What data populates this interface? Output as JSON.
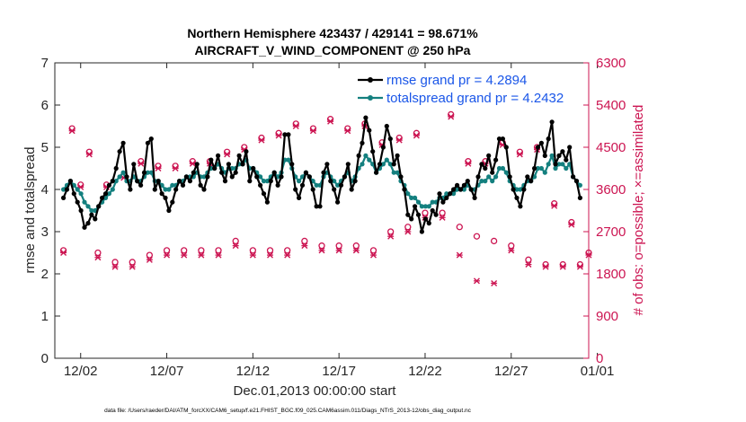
{
  "chart_data": {
    "type": "line",
    "title": "Northern Hemisphere 423437 / 429141 = 98.671%",
    "subtitle": "AIRCRAFT_V_WIND_COMPONENT @ 250 hPa",
    "xlabel": "Dec.01,2013 00:00:00 start",
    "ylabel_left": "rmse and totalspread",
    "ylabel_right": "# of obs: o=possible; ×=assimilated",
    "footer": "data file: /Users/raeder/DAI/ATM_forcXX/CAM6_setup/f.e21.FHIST_BGC.f09_025.CAM6assim.011/Diags_NTrS_2013-12/obs_diag_output.nc",
    "x_day_range": [
      0.5,
      31.5
    ],
    "ylim_left": [
      0,
      7
    ],
    "ylim_right": [
      0,
      6300
    ],
    "x_ticks": [
      {
        "day": 2,
        "label": "12/02"
      },
      {
        "day": 7,
        "label": "12/07"
      },
      {
        "day": 12,
        "label": "12/12"
      },
      {
        "day": 17,
        "label": "12/17"
      },
      {
        "day": 22,
        "label": "12/22"
      },
      {
        "day": 27,
        "label": "12/27"
      },
      {
        "day": 32,
        "label": "01/01"
      }
    ],
    "y_ticks_left": [
      "0",
      "1",
      "2",
      "3",
      "4",
      "5",
      "6",
      "7"
    ],
    "y_ticks_right": [
      "0",
      "900",
      "1800",
      "2700",
      "3600",
      "4500",
      "5400",
      "6300"
    ],
    "colors": {
      "rmse": "#000000",
      "spread": "#14807f",
      "obs": "#cc1552",
      "legend_text": "#1a56e8"
    },
    "legend": {
      "placement": "top-right",
      "entries": [
        "rmse grand pr = 4.2894",
        "totalspread grand pr = 4.2432"
      ]
    },
    "series": [
      {
        "name": "rmse",
        "color": "#000000",
        "values": [
          3.8,
          4.0,
          4.2,
          3.9,
          3.7,
          3.5,
          3.1,
          3.2,
          3.4,
          3.3,
          3.6,
          3.8,
          3.9,
          4.1,
          4.2,
          4.5,
          4.9,
          5.1,
          4.3,
          4.0,
          4.6,
          4.2,
          4.1,
          4.4,
          5.1,
          5.2,
          4.0,
          4.2,
          3.9,
          3.8,
          3.5,
          3.7,
          4.0,
          4.2,
          4.1,
          4.3,
          4.2,
          4.4,
          4.6,
          4.1,
          4.0,
          4.3,
          4.7,
          4.5,
          4.8,
          4.4,
          4.2,
          4.6,
          4.3,
          4.4,
          4.8,
          4.6,
          4.9,
          4.2,
          4.5,
          4.3,
          4.1,
          3.9,
          3.7,
          4.2,
          4.4,
          4.1,
          4.3,
          5.3,
          5.3,
          4.6,
          4.0,
          3.8,
          4.1,
          4.4,
          4.3,
          4.0,
          3.6,
          3.6,
          4.4,
          4.6,
          4.2,
          4.0,
          3.7,
          4.1,
          4.3,
          4.6,
          4.0,
          4.2,
          4.8,
          5.1,
          5.7,
          5.4,
          4.9,
          4.4,
          4.6,
          5.0,
          5.5,
          5.2,
          4.6,
          4.8,
          4.3,
          4.0,
          3.4,
          3.3,
          3.6,
          3.4,
          3.0,
          3.3,
          3.2,
          3.5,
          3.4,
          3.9,
          3.7,
          3.8,
          3.9,
          4.0,
          4.1,
          4.0,
          4.1,
          4.2,
          4.0,
          3.8,
          4.3,
          4.6,
          4.5,
          4.8,
          4.4,
          4.7,
          5.2,
          5.2,
          5.0,
          4.3,
          4.0,
          3.8,
          3.6,
          4.0,
          4.3,
          4.2,
          4.5,
          5.0,
          5.1,
          4.8,
          5.2,
          5.6,
          4.6,
          4.8,
          4.9,
          4.7,
          5.0,
          4.3,
          4.2,
          3.8
        ]
      },
      {
        "name": "totalspread",
        "color": "#14807f",
        "values": [
          4.0,
          4.1,
          4.2,
          4.1,
          4.0,
          3.9,
          3.7,
          3.6,
          3.5,
          3.5,
          3.6,
          3.7,
          3.8,
          3.9,
          4.0,
          4.2,
          4.3,
          4.4,
          4.2,
          4.2,
          4.3,
          4.2,
          4.2,
          4.3,
          4.4,
          4.4,
          4.2,
          4.2,
          4.1,
          4.0,
          4.0,
          4.1,
          4.1,
          4.2,
          4.2,
          4.3,
          4.3,
          4.3,
          4.4,
          4.3,
          4.3,
          4.4,
          4.5,
          4.5,
          4.6,
          4.5,
          4.4,
          4.5,
          4.5,
          4.5,
          4.6,
          4.6,
          4.7,
          4.5,
          4.5,
          4.4,
          4.3,
          4.2,
          4.2,
          4.3,
          4.4,
          4.3,
          4.4,
          4.7,
          4.7,
          4.5,
          4.3,
          4.2,
          4.3,
          4.4,
          4.3,
          4.2,
          4.1,
          4.1,
          4.3,
          4.4,
          4.3,
          4.2,
          4.1,
          4.2,
          4.3,
          4.4,
          4.2,
          4.3,
          4.5,
          4.6,
          4.8,
          4.7,
          4.6,
          4.4,
          4.5,
          4.6,
          4.7,
          4.6,
          4.4,
          4.4,
          4.2,
          4.1,
          3.9,
          3.8,
          3.8,
          3.7,
          3.6,
          3.6,
          3.6,
          3.7,
          3.7,
          3.8,
          3.8,
          3.9,
          3.9,
          3.9,
          4.0,
          4.0,
          4.0,
          4.1,
          4.0,
          4.0,
          4.1,
          4.2,
          4.2,
          4.3,
          4.2,
          4.3,
          4.5,
          4.5,
          4.4,
          4.2,
          4.1,
          4.0,
          4.0,
          4.1,
          4.2,
          4.2,
          4.3,
          4.5,
          4.5,
          4.4,
          4.6,
          4.8,
          4.5,
          4.6,
          4.6,
          4.5,
          4.6,
          4.3,
          4.2,
          4.1
        ]
      }
    ],
    "obs_counts": {
      "x_days": [
        1.0,
        1.5,
        2.0,
        2.5,
        3.0,
        3.5,
        4.0,
        4.5,
        5.0,
        5.5,
        6.0,
        6.5,
        7.0,
        7.5,
        8.0,
        8.5,
        9.0,
        9.5,
        10.0,
        10.5,
        11.0,
        11.5,
        12.0,
        12.5,
        13.0,
        13.5,
        14.0,
        14.5,
        15.0,
        15.5,
        16.0,
        16.5,
        17.0,
        17.5,
        18.0,
        18.5,
        19.0,
        19.5,
        20.0,
        20.5,
        21.0,
        21.5,
        22.0,
        22.5,
        23.0,
        23.5,
        24.0,
        24.5,
        25.0,
        25.5,
        26.0,
        26.5,
        27.0,
        27.5,
        28.0,
        28.5,
        29.0,
        29.5,
        30.0,
        30.5,
        31.0,
        31.5
      ],
      "possible": [
        2300,
        4900,
        3700,
        4400,
        2250,
        3700,
        2050,
        3900,
        2050,
        4200,
        2200,
        4100,
        2300,
        4100,
        2300,
        4200,
        2300,
        4200,
        2300,
        4400,
        2500,
        4500,
        2300,
        4700,
        2300,
        4800,
        2300,
        5000,
        2500,
        4900,
        2400,
        5100,
        2400,
        4900,
        2400,
        5000,
        2300,
        4600,
        2700,
        4700,
        2800,
        4800,
        3100,
        5500,
        3100,
        5200,
        2800,
        4200,
        2600,
        4200,
        2500,
        4600,
        2400,
        4400,
        2100,
        4500,
        2000,
        3300,
        2000,
        2900,
        2000,
        2250
      ],
      "assimilated": [
        2250,
        4850,
        3650,
        4350,
        2150,
        3650,
        1950,
        3850,
        1950,
        4150,
        2100,
        4050,
        2200,
        4050,
        2200,
        4150,
        2200,
        4150,
        2200,
        4350,
        2400,
        4450,
        2200,
        4650,
        2200,
        4750,
        2200,
        4950,
        2400,
        4850,
        2300,
        5050,
        2300,
        4850,
        2300,
        4950,
        2200,
        4550,
        2600,
        4650,
        2700,
        4750,
        3000,
        5450,
        3000,
        5150,
        2200,
        4150,
        1650,
        4150,
        1600,
        4550,
        2300,
        4350,
        2000,
        4450,
        1950,
        3250,
        1950,
        2850,
        1950,
        2200
      ]
    }
  }
}
